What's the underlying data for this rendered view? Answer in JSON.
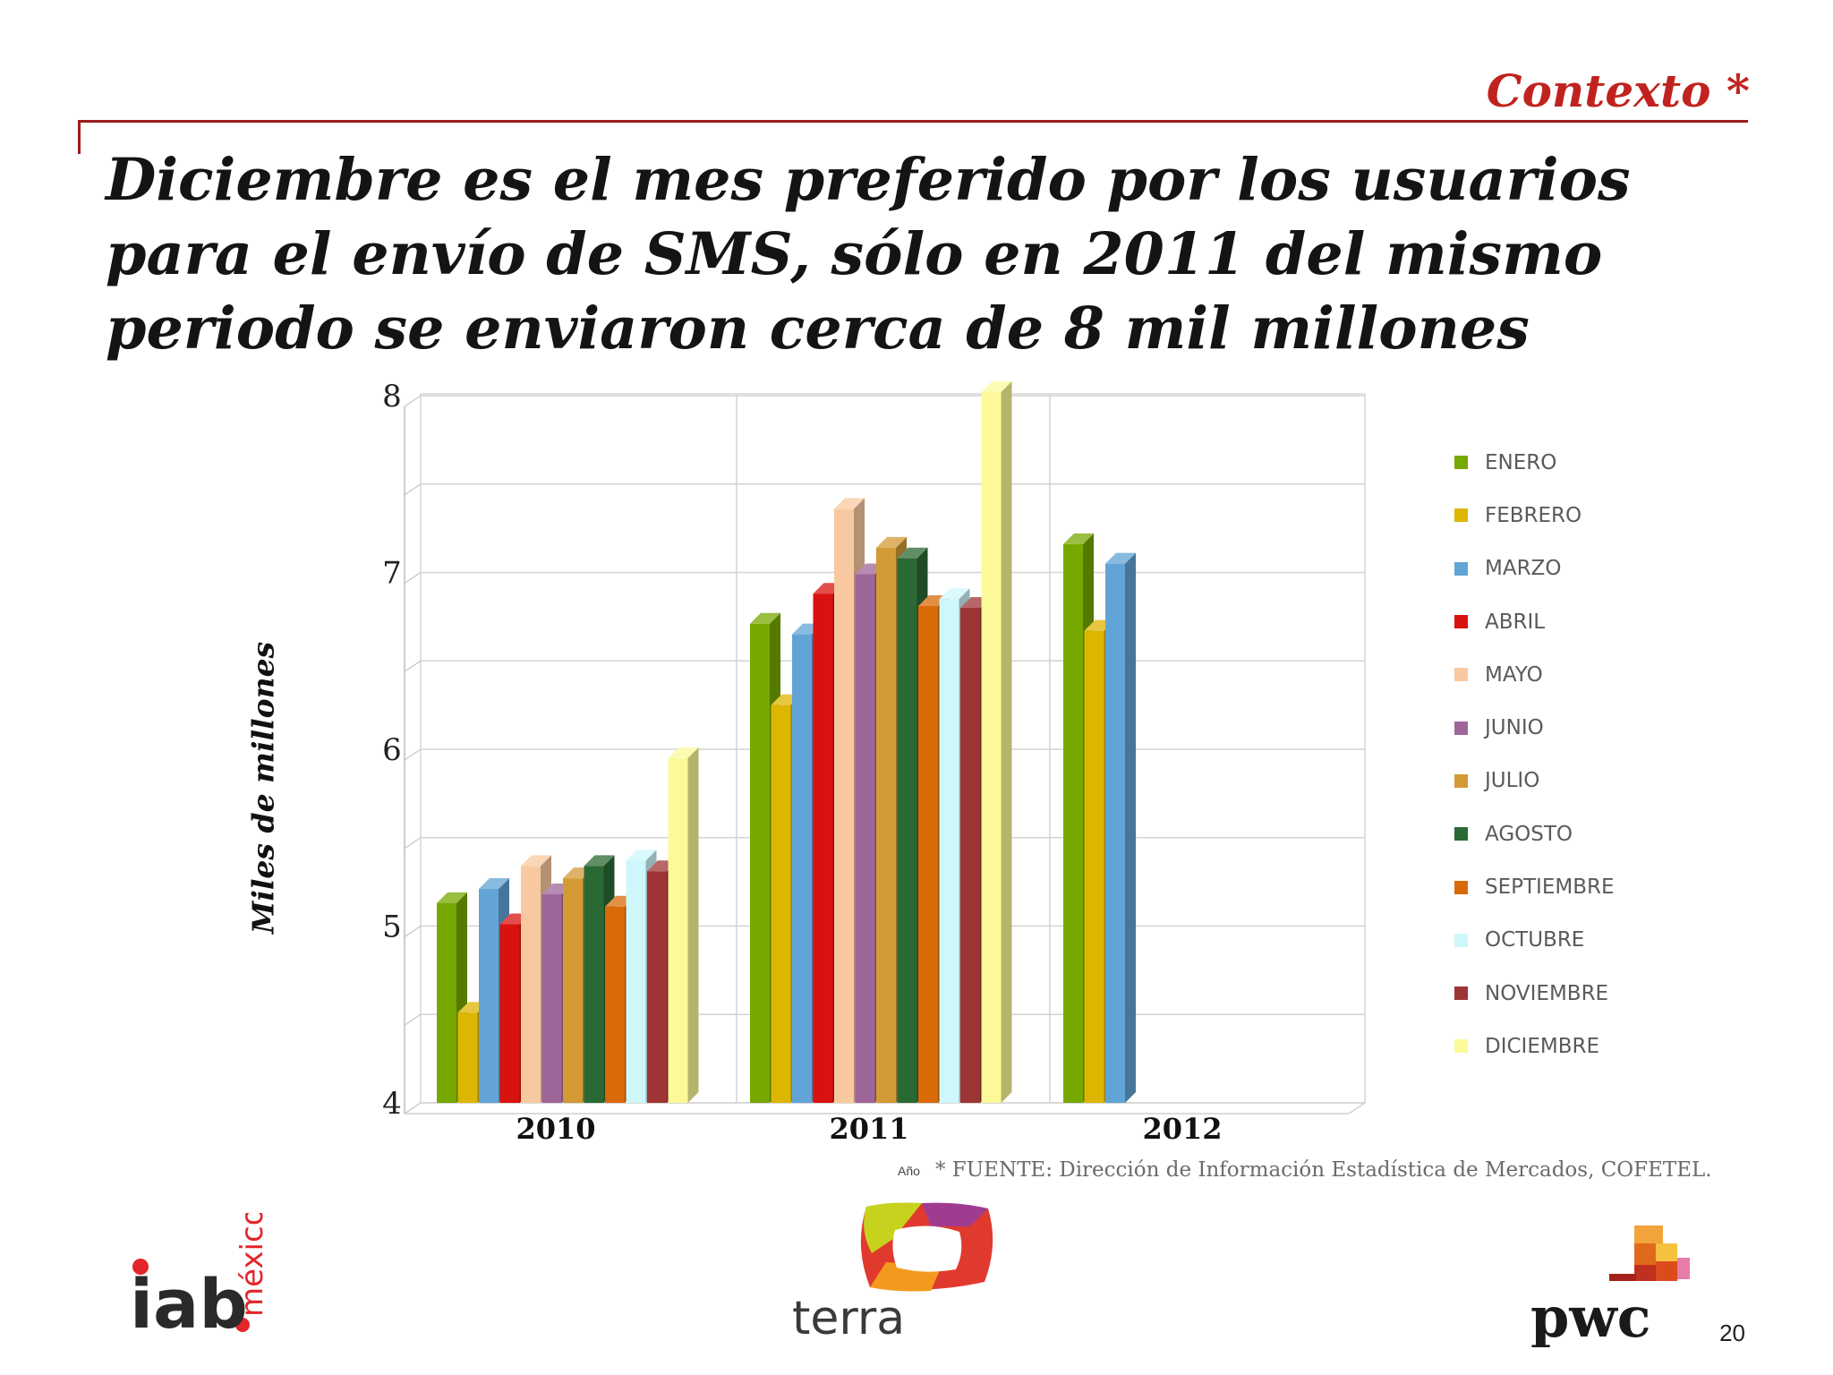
{
  "header": {
    "section": "Contexto *",
    "title": "Diciembre es el mes preferido por los usuarios para el envío de SMS, sólo en 2011 del mismo periodo se enviaron cerca de 8 mil millones"
  },
  "chart_data": {
    "type": "bar",
    "categories": [
      "2010",
      "2011",
      "2012"
    ],
    "ylabel": "Miles de millones",
    "xlabel": "Año",
    "ylim": [
      4,
      8
    ],
    "yticks": [
      4,
      5,
      6,
      7,
      8
    ],
    "legend_position": "right",
    "grid": true,
    "series": [
      {
        "name": "ENERO",
        "color": "#77a800",
        "values": [
          5.13,
          6.71,
          7.16
        ]
      },
      {
        "name": "FEBRERO",
        "color": "#dcb600",
        "values": [
          4.51,
          6.25,
          6.67
        ]
      },
      {
        "name": "MARZO",
        "color": "#62a4d6",
        "values": [
          5.21,
          6.65,
          7.05
        ]
      },
      {
        "name": "ABRIL",
        "color": "#d9120f",
        "values": [
          5.01,
          6.88,
          null
        ]
      },
      {
        "name": "MAYO",
        "color": "#f8c9a0",
        "values": [
          5.34,
          7.36,
          null
        ]
      },
      {
        "name": "JUNIO",
        "color": "#9e6699",
        "values": [
          5.18,
          6.99,
          null
        ]
      },
      {
        "name": "JULIO",
        "color": "#d39a35",
        "values": [
          5.27,
          7.14,
          null
        ]
      },
      {
        "name": "AGOSTO",
        "color": "#2b6934",
        "values": [
          5.34,
          7.08,
          null
        ]
      },
      {
        "name": "SEPTIEMBRE",
        "color": "#d96a08",
        "values": [
          5.11,
          6.81,
          null
        ]
      },
      {
        "name": "OCTUBRE",
        "color": "#cdf7fb",
        "values": [
          5.37,
          6.85,
          null
        ]
      },
      {
        "name": "NOVIEMBRE",
        "color": "#9e3535",
        "values": [
          5.31,
          6.8,
          null
        ]
      },
      {
        "name": "DICIEMBRE",
        "color": "#fcfa98",
        "values": [
          5.95,
          8.02,
          null
        ]
      }
    ]
  },
  "footer": {
    "source": "* FUENTE: Dirección de Información Estadística de Mercados, COFETEL.",
    "page_number": "20",
    "logos": {
      "iab_main": "iab",
      "iab_sub": "méxico",
      "terra": "terra",
      "pwc": "pwc"
    }
  }
}
